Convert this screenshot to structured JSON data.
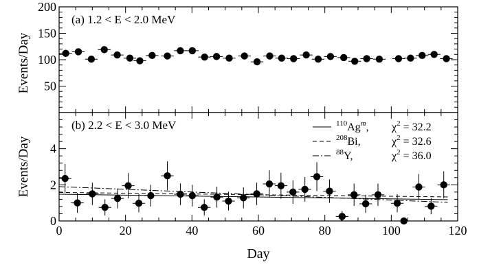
{
  "chart_data": [
    {
      "type": "scatter",
      "title": "(a) 1.2 < E < 2.0 MeV",
      "xlabel": "",
      "ylabel": "Events/Day",
      "xlim": [
        0,
        120
      ],
      "ylim": [
        0,
        200
      ],
      "y_ticks": [
        50,
        100,
        150,
        200
      ],
      "x_half_width": 1.9,
      "points": [
        {
          "x": 2.0,
          "y": 112,
          "yerr": 4
        },
        {
          "x": 5.8,
          "y": 115,
          "yerr": 4
        },
        {
          "x": 9.7,
          "y": 101,
          "yerr": 4
        },
        {
          "x": 13.6,
          "y": 119,
          "yerr": 4
        },
        {
          "x": 17.5,
          "y": 109,
          "yerr": 4
        },
        {
          "x": 21.3,
          "y": 103,
          "yerr": 4
        },
        {
          "x": 24.3,
          "y": 98,
          "yerr": 4
        },
        {
          "x": 28.0,
          "y": 108,
          "yerr": 4
        },
        {
          "x": 32.6,
          "y": 107,
          "yerr": 4
        },
        {
          "x": 36.5,
          "y": 117,
          "yerr": 4
        },
        {
          "x": 40.1,
          "y": 117,
          "yerr": 4
        },
        {
          "x": 43.8,
          "y": 105,
          "yerr": 4
        },
        {
          "x": 47.4,
          "y": 106,
          "yerr": 4
        },
        {
          "x": 51.2,
          "y": 103,
          "yerr": 4
        },
        {
          "x": 55.8,
          "y": 107,
          "yerr": 4
        },
        {
          "x": 59.6,
          "y": 96,
          "yerr": 4
        },
        {
          "x": 63.4,
          "y": 107,
          "yerr": 4
        },
        {
          "x": 67.0,
          "y": 103,
          "yerr": 4
        },
        {
          "x": 70.6,
          "y": 102,
          "yerr": 4
        },
        {
          "x": 74.4,
          "y": 109,
          "yerr": 4
        },
        {
          "x": 78.0,
          "y": 101,
          "yerr": 4
        },
        {
          "x": 81.7,
          "y": 106,
          "yerr": 4
        },
        {
          "x": 85.7,
          "y": 104,
          "yerr": 4
        },
        {
          "x": 89.0,
          "y": 97,
          "yerr": 4
        },
        {
          "x": 92.6,
          "y": 102,
          "yerr": 4
        },
        {
          "x": 96.4,
          "y": 101,
          "yerr": 4
        },
        {
          "x": 102.2,
          "y": 102,
          "yerr": 4
        },
        {
          "x": 105.8,
          "y": 103,
          "yerr": 4
        },
        {
          "x": 109.3,
          "y": 108,
          "yerr": 4
        },
        {
          "x": 112.9,
          "y": 110,
          "yerr": 4
        },
        {
          "x": 116.6,
          "y": 102,
          "yerr": 4
        }
      ]
    },
    {
      "type": "scatter",
      "title": "(b) 2.2 < E < 3.0 MeV",
      "xlabel": "Day",
      "ylabel": "Events/Day",
      "xlim": [
        0,
        120
      ],
      "ylim": [
        0,
        6
      ],
      "x_ticks": [
        0,
        20,
        40,
        60,
        80,
        100,
        120
      ],
      "y_ticks": [
        0,
        2,
        4
      ],
      "x_half_width": 1.9,
      "points": [
        {
          "x": 1.8,
          "y": 2.35,
          "yerr": 0.8
        },
        {
          "x": 5.5,
          "y": 1.0,
          "yerr": 0.55
        },
        {
          "x": 10.0,
          "y": 1.5,
          "yerr": 0.62
        },
        {
          "x": 13.8,
          "y": 0.75,
          "yerr": 0.45
        },
        {
          "x": 17.6,
          "y": 1.25,
          "yerr": 0.55
        },
        {
          "x": 20.8,
          "y": 1.95,
          "yerr": 0.7
        },
        {
          "x": 24.0,
          "y": 0.98,
          "yerr": 0.5
        },
        {
          "x": 27.6,
          "y": 1.4,
          "yerr": 0.6
        },
        {
          "x": 32.6,
          "y": 2.5,
          "yerr": 0.8
        },
        {
          "x": 36.5,
          "y": 1.48,
          "yerr": 0.6
        },
        {
          "x": 40.1,
          "y": 1.4,
          "yerr": 0.6
        },
        {
          "x": 43.7,
          "y": 0.75,
          "yerr": 0.45
        },
        {
          "x": 47.5,
          "y": 1.32,
          "yerr": 0.58
        },
        {
          "x": 51.0,
          "y": 1.1,
          "yerr": 0.52
        },
        {
          "x": 55.5,
          "y": 1.28,
          "yerr": 0.58
        },
        {
          "x": 59.5,
          "y": 1.5,
          "yerr": 0.62
        },
        {
          "x": 63.3,
          "y": 2.05,
          "yerr": 0.75
        },
        {
          "x": 66.8,
          "y": 1.95,
          "yerr": 0.72
        },
        {
          "x": 70.4,
          "y": 1.6,
          "yerr": 0.65
        },
        {
          "x": 74.0,
          "y": 1.75,
          "yerr": 0.68
        },
        {
          "x": 77.6,
          "y": 2.45,
          "yerr": 0.8
        },
        {
          "x": 81.4,
          "y": 1.65,
          "yerr": 0.65
        },
        {
          "x": 85.2,
          "y": 0.25,
          "yerr": 0.3
        },
        {
          "x": 88.8,
          "y": 1.45,
          "yerr": 0.62
        },
        {
          "x": 92.3,
          "y": 0.95,
          "yerr": 0.5
        },
        {
          "x": 96.0,
          "y": 1.45,
          "yerr": 0.62
        },
        {
          "x": 101.8,
          "y": 0.98,
          "yerr": 0.5
        },
        {
          "x": 103.8,
          "y": 0.0,
          "yerr": 0.0
        },
        {
          "x": 108.3,
          "y": 1.88,
          "yerr": 0.72
        },
        {
          "x": 112.0,
          "y": 0.82,
          "yerr": 0.45
        },
        {
          "x": 115.8,
          "y": 2.0,
          "yerr": 0.75
        }
      ],
      "fits": [
        {
          "isotope": "110",
          "element": "Ag",
          "state": "m",
          "sep": ",",
          "chi2": "32.2",
          "style": "solid",
          "y_start": 1.48,
          "y_end": 1.18
        },
        {
          "isotope": "208",
          "element": "Bi",
          "state": "",
          "sep": ",",
          "chi2": "32.6",
          "style": "dashed",
          "y_start": 1.58,
          "y_end": 1.33
        },
        {
          "isotope": "88",
          "element": "Y",
          "state": "",
          "sep": ",",
          "chi2": "36.0",
          "style": "dashdot",
          "y_start": 1.9,
          "y_end": 1.03
        }
      ],
      "legend_position": "top-right",
      "chi2_symbol": "χ",
      "chi2_power": "2"
    }
  ]
}
